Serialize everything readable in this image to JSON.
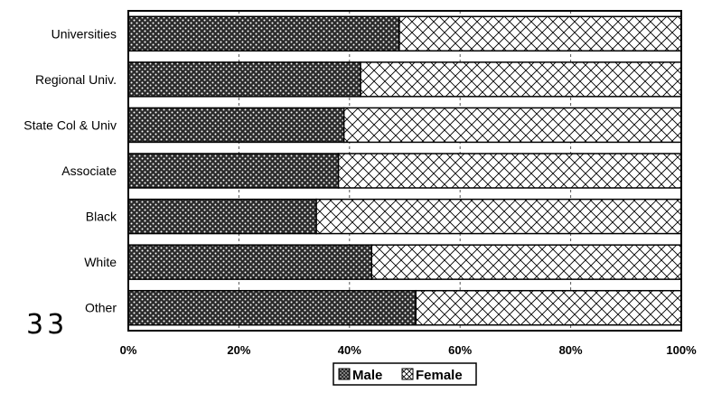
{
  "chart_data": {
    "type": "bar",
    "orientation": "horizontal",
    "stacked": true,
    "percent": true,
    "categories": [
      "Universities",
      "Regional Univ.",
      "State Col & Univ",
      "Associate",
      "Black",
      "White",
      "Other"
    ],
    "series": [
      {
        "name": "Male",
        "values": [
          49,
          42,
          39,
          38,
          34,
          44,
          52
        ],
        "pattern": "dots"
      },
      {
        "name": "Female",
        "values": [
          51,
          58,
          61,
          62,
          66,
          56,
          48
        ],
        "pattern": "crosshatch"
      }
    ],
    "x_ticks": [
      "0%",
      "20%",
      "40%",
      "60%",
      "80%",
      "100%"
    ],
    "xlim": [
      0,
      100
    ],
    "grid": "vertical-dashed",
    "legend": "bottom-center"
  },
  "page_number": "33",
  "colors": {
    "male_fill": "#2b2b2b",
    "female_fill": "#ffffff",
    "stroke": "#000000"
  }
}
